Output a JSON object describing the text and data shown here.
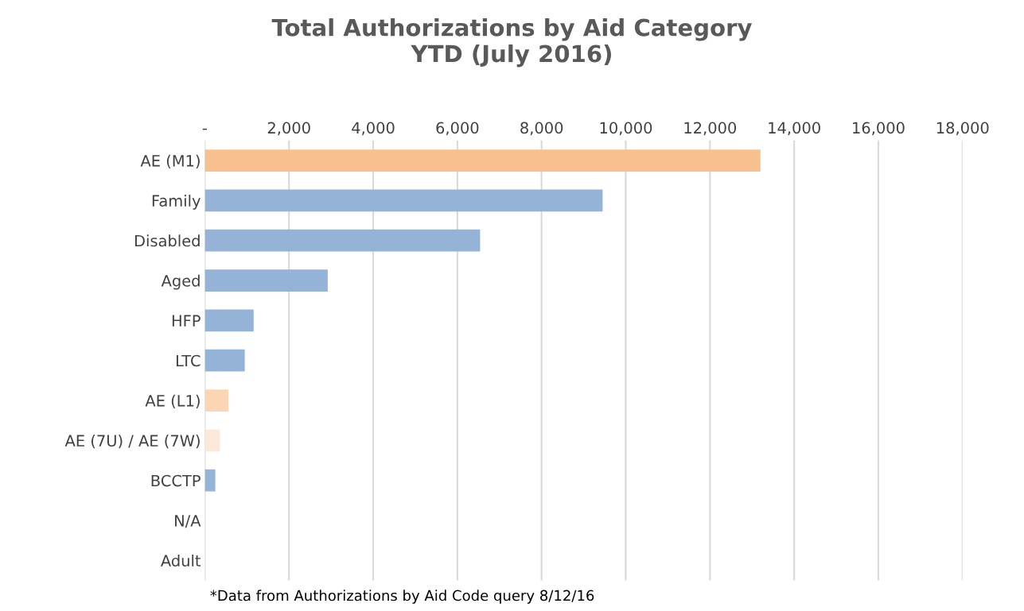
{
  "chart_data": {
    "type": "bar",
    "orientation": "horizontal",
    "title": "Total Authorizations by Aid Category\nYTD (July 2016)",
    "categories": [
      "AE (M1)",
      "Family",
      "Disabled",
      "Aged",
      "HFP",
      "LTC",
      "AE (L1)",
      "AE (7U) / AE (7W)",
      "BCCTP",
      "N/A",
      "Adult"
    ],
    "values": [
      13200,
      9450,
      6540,
      2920,
      1160,
      950,
      560,
      360,
      250,
      0,
      0
    ],
    "colors": [
      "#f9c08f",
      "#95b3d7",
      "#95b3d7",
      "#95b3d7",
      "#95b3d7",
      "#95b3d7",
      "#fcd5b4",
      "#fde9d9",
      "#95b3d7",
      "#95b3d7",
      "#95b3d7"
    ],
    "xlim": [
      0,
      18000
    ],
    "xticks": [
      {
        "value": 0,
        "label": "-"
      },
      {
        "value": 2000,
        "label": "2,000"
      },
      {
        "value": 4000,
        "label": "4,000"
      },
      {
        "value": 6000,
        "label": "6,000"
      },
      {
        "value": 8000,
        "label": "8,000"
      },
      {
        "value": 10000,
        "label": "10,000"
      },
      {
        "value": 12000,
        "label": "12,000"
      },
      {
        "value": 14000,
        "label": "14,000"
      },
      {
        "value": 16000,
        "label": "16,000"
      },
      {
        "value": 18000,
        "label": "18,000"
      }
    ],
    "grid": "x",
    "legend": false,
    "annotations": [
      "*Data from Authorizations by Aid Code query 8/12/16"
    ]
  }
}
